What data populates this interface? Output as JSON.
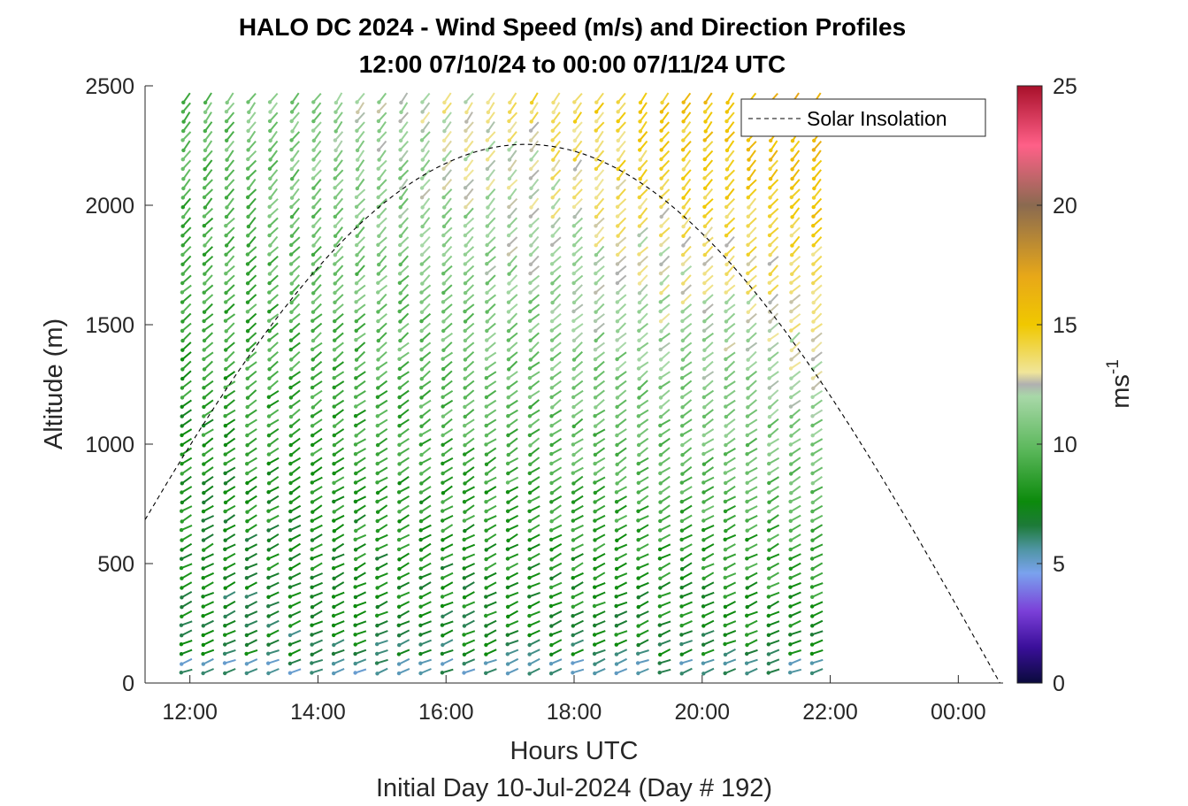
{
  "chart_data": {
    "type": "wind barb profile",
    "title_line1": "HALO DC 2024 - Wind Speed (m/s) and Direction Profiles",
    "title_line2": "12:00 07/10/24 to 00:00 07/11/24  UTC",
    "xlabel": "Hours UTC",
    "xlabel2": "Initial Day 10-Jul-2024 (Day # 192)",
    "ylabel": "Altitude (m)",
    "xlim_hours": [
      11.3,
      24.7
    ],
    "ylim": [
      0,
      2500
    ],
    "x_ticks": [
      {
        "value": 12,
        "label": "12:00"
      },
      {
        "value": 14,
        "label": "14:00"
      },
      {
        "value": 16,
        "label": "16:00"
      },
      {
        "value": 18,
        "label": "18:00"
      },
      {
        "value": 20,
        "label": "20:00"
      },
      {
        "value": 22,
        "label": "22:00"
      },
      {
        "value": 24,
        "label": "00:00"
      }
    ],
    "y_ticks": [
      {
        "value": 0,
        "label": "0"
      },
      {
        "value": 500,
        "label": "500"
      },
      {
        "value": 1000,
        "label": "1000"
      },
      {
        "value": 1500,
        "label": "1500"
      },
      {
        "value": 2000,
        "label": "2000"
      },
      {
        "value": 2500,
        "label": "2500"
      }
    ],
    "colorbar": {
      "label": "ms",
      "label_superscript": "-1",
      "range": [
        0,
        25
      ],
      "ticks": [
        {
          "value": 0,
          "label": "0"
        },
        {
          "value": 5,
          "label": "5"
        },
        {
          "value": 10,
          "label": "10"
        },
        {
          "value": 15,
          "label": "15"
        },
        {
          "value": 20,
          "label": "20"
        },
        {
          "value": 25,
          "label": "25"
        }
      ],
      "stops": [
        {
          "v": 0,
          "c": "#0a0a3c"
        },
        {
          "v": 1.5,
          "c": "#3a0f9a"
        },
        {
          "v": 3,
          "c": "#7b3fd8"
        },
        {
          "v": 4.6,
          "c": "#7aa2ee"
        },
        {
          "v": 5.6,
          "c": "#4f95a3"
        },
        {
          "v": 6.6,
          "c": "#1d7a38"
        },
        {
          "v": 7.6,
          "c": "#0c8a0c"
        },
        {
          "v": 9.8,
          "c": "#5cb85c"
        },
        {
          "v": 12,
          "c": "#a8d8a8"
        },
        {
          "v": 12.5,
          "c": "#b0b0b0"
        },
        {
          "v": 13,
          "c": "#f0e59a"
        },
        {
          "v": 15,
          "c": "#f0c800"
        },
        {
          "v": 17,
          "c": "#e8a818"
        },
        {
          "v": 20,
          "c": "#8a6a50"
        },
        {
          "v": 22.5,
          "c": "#ff6088"
        },
        {
          "v": 25,
          "c": "#a8102a"
        }
      ]
    },
    "legend": {
      "label": "Solar Insolation",
      "position": "top-right"
    },
    "solar_insolation_curve": {
      "note": "peak altitude in y-axis units",
      "peak_time": 17.25,
      "peak_value": 2255,
      "half_width_hours": 7.4
    },
    "profiles": {
      "time_start": 11.95,
      "time_end": 21.8,
      "count": 30,
      "alt_start": 50,
      "alt_end": 2480,
      "alt_step": 40
    }
  }
}
